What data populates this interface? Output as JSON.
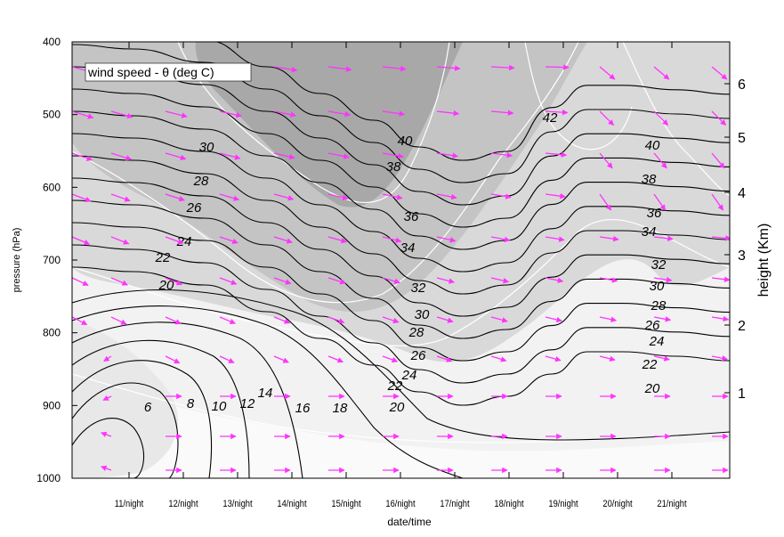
{
  "chart_data": {
    "type": "contour",
    "title": "wind speed - θ (deg C)",
    "xlabel": "date/time",
    "ylabel_left": "pressure (hPa)",
    "ylabel_right": "height (Km)",
    "x_ticks": [
      "11/night",
      "12/night",
      "13/night",
      "14/night",
      "15/night",
      "16/night",
      "17/night",
      "18/night",
      "19/night",
      "20/night",
      "21/night"
    ],
    "y_left_ticks": [
      "400",
      "500",
      "600",
      "700",
      "800",
      "900",
      "1000"
    ],
    "y_left_range": [
      1000,
      400
    ],
    "y_right_ticks": [
      "6",
      "5",
      "4",
      "3",
      "2",
      "1"
    ],
    "contour_levels": [
      "6",
      "8",
      "10",
      "12",
      "14",
      "16",
      "18",
      "20",
      "22",
      "24",
      "26",
      "28",
      "30",
      "32",
      "34",
      "36",
      "38",
      "40",
      "42"
    ],
    "wind_arrow_color": "#ff33ff",
    "background_shading": "grey (darker = higher wind speed)",
    "colors": {
      "background": "#ffffff",
      "contour": "#000000",
      "wind_contour": "#ffffff",
      "arrow": "#ff33ff"
    }
  }
}
